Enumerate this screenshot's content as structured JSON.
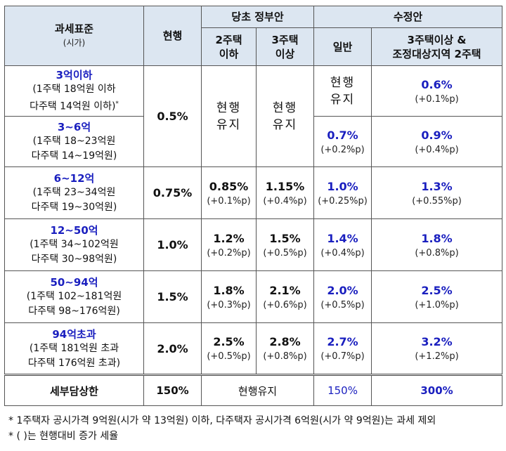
{
  "header": {
    "tax_base": "과세표준",
    "tax_base_sub": "(시가)",
    "current": "현행",
    "original_proposal": "당초 정부안",
    "orig_col1": "2주택\n이하",
    "orig_col2": "3주택\n이상",
    "revised": "수정안",
    "rev_col1": "일반",
    "rev_col2": "3주택이상 &\n조정대상지역 2주택"
  },
  "rows": [
    {
      "range": "3억이하",
      "desc1": "(1주택 18억원 이하",
      "desc2": "다주택 14억원 이하)",
      "note_mark": "*",
      "rev_general": "현행\n유지",
      "rev_multi": "0.6%",
      "rev_multi_diff": "(+0.1%p)"
    },
    {
      "range": "3~6억",
      "desc1": "(1주택 18~23억원",
      "desc2": "다주택 14~19억원)",
      "rev_general": "0.7%",
      "rev_general_diff": "(+0.2%p)",
      "rev_multi": "0.9%",
      "rev_multi_diff": "(+0.4%p)"
    },
    {
      "range": "6~12억",
      "desc1": "(1주택 23~34억원",
      "desc2": "다주택 19~30억원)",
      "current": "0.75%",
      "orig1": "0.85%",
      "orig1_diff": "(+0.1%p)",
      "orig2": "1.15%",
      "orig2_diff": "(+0.4%p)",
      "rev_general": "1.0%",
      "rev_general_diff": "(+0.25%p)",
      "rev_multi": "1.3%",
      "rev_multi_diff": "(+0.55%p)"
    },
    {
      "range": "12~50억",
      "desc1": "(1주택 34~102억원",
      "desc2": "다주택 30~98억원)",
      "current": "1.0%",
      "orig1": "1.2%",
      "orig1_diff": "(+0.2%p)",
      "orig2": "1.5%",
      "orig2_diff": "(+0.5%p)",
      "rev_general": "1.4%",
      "rev_general_diff": "(+0.4%p)",
      "rev_multi": "1.8%",
      "rev_multi_diff": "(+0.8%p)"
    },
    {
      "range": "50~94억",
      "desc1": "(1주택 102~181억원",
      "desc2": "다주택 98~176억원)",
      "current": "1.5%",
      "orig1": "1.8%",
      "orig1_diff": "(+0.3%p)",
      "orig2": "2.1%",
      "orig2_diff": "(+0.6%p)",
      "rev_general": "2.0%",
      "rev_general_diff": "(+0.5%p)",
      "rev_multi": "2.5%",
      "rev_multi_diff": "(+1.0%p)"
    },
    {
      "range": "94억초과",
      "desc1": "(1주택 181억원 초과",
      "desc2": "다주택 176억원 초과)",
      "current": "2.0%",
      "orig1": "2.5%",
      "orig1_diff": "(+0.5%p)",
      "orig2": "2.8%",
      "orig2_diff": "(+0.8%p)",
      "rev_general": "2.7%",
      "rev_general_diff": "(+0.7%p)",
      "rev_multi": "3.2%",
      "rev_multi_diff": "(+1.2%p)"
    }
  ],
  "merged": {
    "current_top": "0.5%",
    "orig1_keep": "현행\n유지",
    "orig2_keep": "현행\n유지"
  },
  "cap_row": {
    "label": "세부담상한",
    "current": "150%",
    "original": "현행유지",
    "rev_general": "150%",
    "rev_multi": "300%"
  },
  "footnotes": [
    "* 1주택자 공시가격 9억원(시가 약 13억원) 이하, 다주택자 공시가격 6억원(시가 약 9억원)는 과세 제외",
    "* ( )는 현행대비 증가 세율"
  ],
  "colors": {
    "header_bg": "#dce6f1",
    "accent_blue": "#1a1fbf"
  }
}
